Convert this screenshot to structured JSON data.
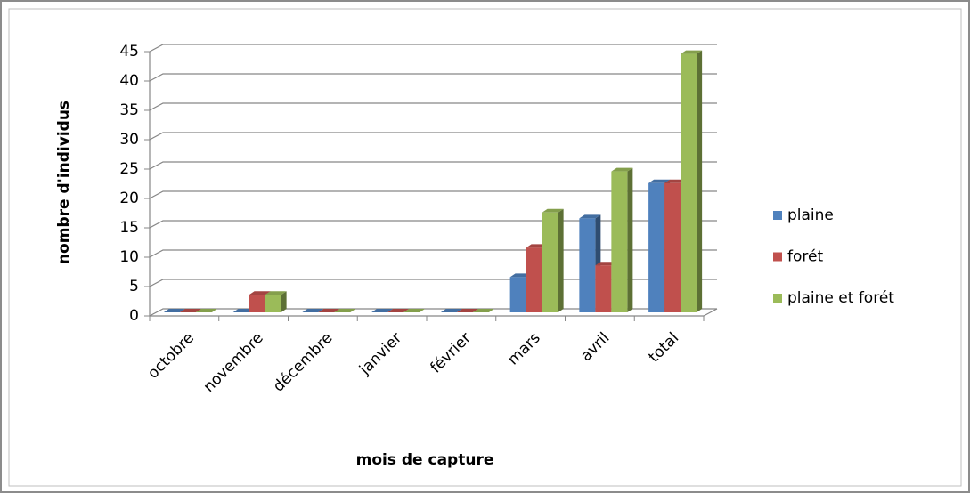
{
  "chart_data": {
    "type": "bar3d",
    "y_label": "nombre d'individus",
    "x_label": "mois de capture",
    "categories": [
      "octobre",
      "novembre",
      "décembre",
      "janvier",
      "février",
      "mars",
      "avril",
      "total"
    ],
    "series": [
      {
        "name": "plaine",
        "color": "#4f81bd",
        "values": [
          0,
          0,
          0,
          0,
          0,
          6,
          16,
          22
        ]
      },
      {
        "name": "forét",
        "color": "#c0504d",
        "values": [
          0,
          3,
          0,
          0,
          0,
          11,
          8,
          22
        ]
      },
      {
        "name": "plaine et forét",
        "color": "#9bbb59",
        "values": [
          0,
          3,
          0,
          0,
          0,
          17,
          24,
          44
        ]
      }
    ],
    "ylim": [
      0,
      45
    ],
    "yticks": [
      0,
      5,
      10,
      15,
      20,
      25,
      30,
      35,
      40,
      45
    ],
    "grid": true,
    "legend": "right"
  }
}
